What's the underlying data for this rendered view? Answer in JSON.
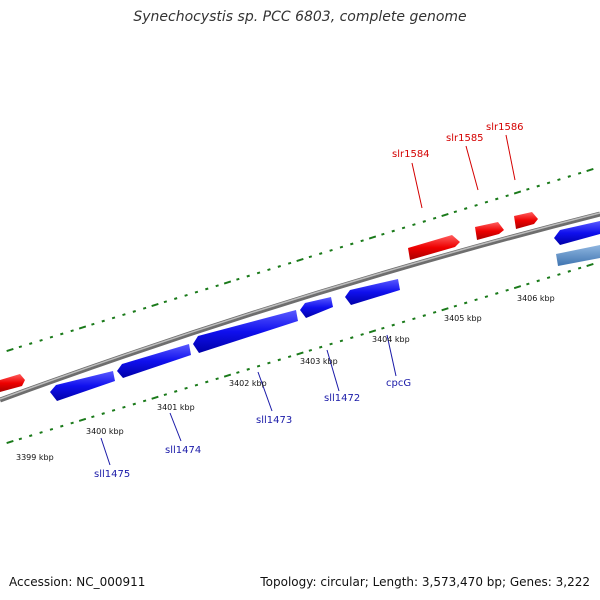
{
  "title": "Synechocystis sp. PCC 6803, complete genome",
  "footer": {
    "accession": "Accession: NC_000911",
    "summary": "Topology: circular; Length: 3,573,470 bp; Genes: 3,222"
  },
  "scale_ticks": [
    {
      "label": "3399 kbp"
    },
    {
      "label": "3400 kbp"
    },
    {
      "label": "3401 kbp"
    },
    {
      "label": "3402 kbp"
    },
    {
      "label": "3403 kbp"
    },
    {
      "label": "3404 kbp"
    },
    {
      "label": "3405 kbp"
    },
    {
      "label": "3406 kbp"
    }
  ],
  "forward_gene_labels": [
    {
      "name": "slr1584"
    },
    {
      "name": "slr1585"
    },
    {
      "name": "slr1586"
    }
  ],
  "reverse_gene_labels": [
    {
      "name": "sll1475"
    },
    {
      "name": "sll1474"
    },
    {
      "name": "sll1473"
    },
    {
      "name": "sll1472"
    },
    {
      "name": "cpcG"
    }
  ],
  "colors": {
    "forward_gene": "#ff0000",
    "reverse_gene": "#0000ff",
    "other_feature": "#4f86c6",
    "backbone": "#888888",
    "ticks": "#1a7a1a"
  }
}
